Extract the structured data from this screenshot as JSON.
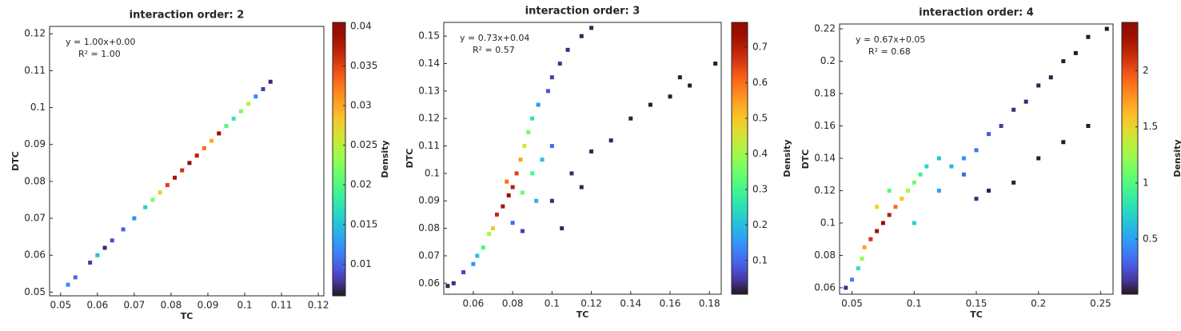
{
  "chart_data": [
    {
      "type": "scatter",
      "title": "interaction order: 2",
      "xlabel": "TC",
      "ylabel": "DTC",
      "annotation": [
        "y = 1.00x+0.00",
        "R² = 1.00"
      ],
      "colormap": "turbo",
      "colorbar_label": "Density",
      "xlim": [
        0.047,
        0.1215
      ],
      "ylim": [
        0.049,
        0.122
      ],
      "xticks": [
        0.05,
        0.06,
        0.07,
        0.08,
        0.09,
        0.1,
        0.11,
        0.12
      ],
      "yticks": [
        0.05,
        0.06,
        0.07,
        0.08,
        0.09,
        0.1,
        0.11,
        0.12
      ],
      "clim": [
        0.006,
        0.0405
      ],
      "cticks": [
        0.01,
        0.015,
        0.02,
        0.025,
        0.03,
        0.035,
        0.04
      ],
      "x": [
        0.052,
        0.054,
        0.058,
        0.06,
        0.062,
        0.064,
        0.067,
        0.07,
        0.073,
        0.075,
        0.077,
        0.079,
        0.081,
        0.083,
        0.085,
        0.087,
        0.089,
        0.091,
        0.093,
        0.095,
        0.097,
        0.099,
        0.101,
        0.103,
        0.105,
        0.107
      ],
      "values": [
        0.052,
        0.054,
        0.058,
        0.06,
        0.062,
        0.064,
        0.067,
        0.07,
        0.073,
        0.075,
        0.077,
        0.079,
        0.081,
        0.083,
        0.085,
        0.087,
        0.089,
        0.091,
        0.093,
        0.095,
        0.097,
        0.099,
        0.101,
        0.103,
        0.105,
        0.107
      ],
      "density": [
        0.012,
        0.01,
        0.008,
        0.015,
        0.007,
        0.009,
        0.01,
        0.012,
        0.016,
        0.022,
        0.028,
        0.035,
        0.038,
        0.036,
        0.04,
        0.037,
        0.033,
        0.03,
        0.039,
        0.02,
        0.018,
        0.022,
        0.025,
        0.012,
        0.008,
        0.007
      ]
    },
    {
      "type": "scatter",
      "title": "interaction order: 3",
      "xlabel": "TC",
      "ylabel": "DTC",
      "annotation": [
        "y = 0.73x+0.04",
        "R² = 0.57"
      ],
      "colormap": "turbo",
      "colorbar_label": "Density",
      "xlim": [
        0.045,
        0.186
      ],
      "ylim": [
        0.056,
        0.155
      ],
      "xticks": [
        0.06,
        0.08,
        0.1,
        0.12,
        0.14,
        0.16,
        0.18
      ],
      "yticks": [
        0.06,
        0.07,
        0.08,
        0.09,
        0.1,
        0.11,
        0.12,
        0.13,
        0.14,
        0.15
      ],
      "clim": [
        0.005,
        0.77
      ],
      "cticks": [
        0.1,
        0.2,
        0.3,
        0.4,
        0.5,
        0.6,
        0.7
      ],
      "x": [
        0.047,
        0.05,
        0.055,
        0.06,
        0.062,
        0.065,
        0.068,
        0.07,
        0.072,
        0.075,
        0.077,
        0.078,
        0.08,
        0.082,
        0.084,
        0.085,
        0.086,
        0.088,
        0.09,
        0.09,
        0.093,
        0.095,
        0.092,
        0.1,
        0.098,
        0.1,
        0.104,
        0.108,
        0.115,
        0.12,
        0.08,
        0.085,
        0.1,
        0.11,
        0.12,
        0.13,
        0.14,
        0.15,
        0.16,
        0.165,
        0.17,
        0.183,
        0.105,
        0.115
      ],
      "values": [
        0.059,
        0.06,
        0.064,
        0.067,
        0.07,
        0.073,
        0.078,
        0.08,
        0.085,
        0.088,
        0.097,
        0.092,
        0.095,
        0.1,
        0.105,
        0.093,
        0.11,
        0.115,
        0.12,
        0.1,
        0.125,
        0.105,
        0.09,
        0.11,
        0.13,
        0.135,
        0.14,
        0.145,
        0.15,
        0.153,
        0.082,
        0.079,
        0.09,
        0.1,
        0.108,
        0.112,
        0.12,
        0.125,
        0.128,
        0.135,
        0.132,
        0.14,
        0.08,
        0.095
      ],
      "density": [
        0.02,
        0.03,
        0.06,
        0.15,
        0.2,
        0.3,
        0.4,
        0.5,
        0.68,
        0.72,
        0.6,
        0.75,
        0.7,
        0.65,
        0.55,
        0.35,
        0.45,
        0.35,
        0.25,
        0.3,
        0.15,
        0.2,
        0.18,
        0.1,
        0.08,
        0.05,
        0.04,
        0.03,
        0.02,
        0.02,
        0.1,
        0.05,
        0.03,
        0.03,
        0.02,
        0.02,
        0.015,
        0.01,
        0.01,
        0.01,
        0.01,
        0.01,
        0.02,
        0.02
      ]
    },
    {
      "type": "scatter",
      "title": "interaction order: 4",
      "xlabel": "TC",
      "ylabel": "DTC",
      "annotation": [
        "y = 0.67x+0.05",
        "R² = 0.68"
      ],
      "colormap": "turbo",
      "colorbar_label": "Density",
      "xlim": [
        0.04,
        0.26
      ],
      "ylim": [
        0.056,
        0.223
      ],
      "xticks": [
        0.05,
        0.1,
        0.15,
        0.2,
        0.25
      ],
      "yticks": [
        0.06,
        0.08,
        0.1,
        0.12,
        0.14,
        0.16,
        0.18,
        0.2,
        0.22
      ],
      "clim": [
        0.01,
        2.43
      ],
      "cticks": [
        0.5,
        1,
        1.5,
        2
      ],
      "x": [
        0.045,
        0.05,
        0.055,
        0.058,
        0.06,
        0.065,
        0.07,
        0.07,
        0.075,
        0.08,
        0.08,
        0.085,
        0.09,
        0.095,
        0.1,
        0.1,
        0.105,
        0.11,
        0.12,
        0.12,
        0.13,
        0.14,
        0.14,
        0.15,
        0.15,
        0.16,
        0.16,
        0.17,
        0.18,
        0.18,
        0.19,
        0.2,
        0.2,
        0.21,
        0.22,
        0.22,
        0.23,
        0.24,
        0.24,
        0.255
      ],
      "values": [
        0.06,
        0.065,
        0.072,
        0.078,
        0.085,
        0.09,
        0.11,
        0.095,
        0.1,
        0.12,
        0.105,
        0.11,
        0.115,
        0.12,
        0.1,
        0.125,
        0.13,
        0.135,
        0.12,
        0.14,
        0.135,
        0.13,
        0.14,
        0.115,
        0.145,
        0.12,
        0.155,
        0.16,
        0.125,
        0.17,
        0.175,
        0.14,
        0.185,
        0.19,
        0.15,
        0.2,
        0.205,
        0.16,
        0.215,
        0.22
      ],
      "density": [
        0.1,
        0.4,
        0.8,
        1.2,
        1.7,
        2.1,
        1.5,
        2.3,
        2.4,
        1.0,
        2.2,
        1.9,
        1.6,
        1.3,
        0.7,
        1.1,
        0.9,
        0.75,
        0.5,
        0.65,
        0.6,
        0.3,
        0.45,
        0.1,
        0.35,
        0.05,
        0.25,
        0.15,
        0.04,
        0.1,
        0.08,
        0.03,
        0.05,
        0.04,
        0.02,
        0.03,
        0.02,
        0.02,
        0.02,
        0.01
      ]
    }
  ]
}
